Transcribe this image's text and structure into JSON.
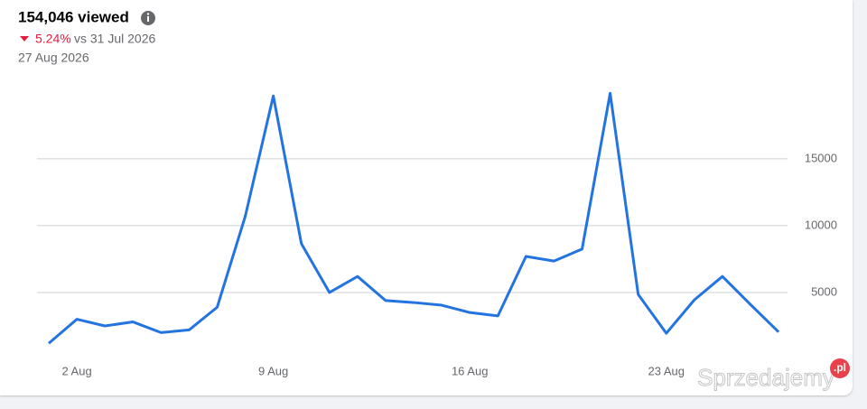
{
  "chart_data": {
    "type": "line",
    "title": "154,046 viewed",
    "change": "5.24%",
    "comparison": "vs 31 Jul 2026",
    "date": "27 Aug 2026",
    "categories": [
      null,
      "2 Aug",
      null,
      null,
      null,
      null,
      null,
      null,
      "9 Aug",
      null,
      null,
      null,
      null,
      null,
      null,
      "16 Aug",
      null,
      null,
      null,
      null,
      null,
      null,
      "23 Aug",
      null,
      null,
      null,
      null
    ],
    "series": [
      {
        "name": "viewed",
        "color": "#2374e1",
        "values": [
          1200,
          3000,
          2500,
          2800,
          2000,
          2200,
          3900,
          10700,
          19700,
          8650,
          5000,
          6200,
          4400,
          4250,
          4050,
          3500,
          3250,
          7700,
          7350,
          8250,
          19900,
          4850,
          1950,
          4450,
          6200,
          4100,
          2050
        ]
      }
    ],
    "ylim": [
      0,
      20800
    ],
    "yticks": [
      5000,
      10000,
      15000
    ],
    "grid": true
  },
  "watermark": {
    "text": "Sprzedajemy",
    "badge": ".pl"
  }
}
